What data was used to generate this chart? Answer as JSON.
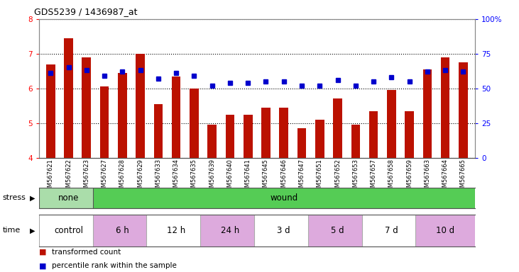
{
  "title": "GDS5239 / 1436987_at",
  "samples": [
    "GSM567621",
    "GSM567622",
    "GSM567623",
    "GSM567627",
    "GSM567628",
    "GSM567629",
    "GSM567633",
    "GSM567634",
    "GSM567635",
    "GSM567639",
    "GSM567640",
    "GSM567641",
    "GSM567645",
    "GSM567646",
    "GSM567647",
    "GSM567651",
    "GSM567652",
    "GSM567653",
    "GSM567657",
    "GSM567658",
    "GSM567659",
    "GSM567663",
    "GSM567664",
    "GSM567665"
  ],
  "transformed_count": [
    6.7,
    7.45,
    6.9,
    6.05,
    6.45,
    7.0,
    5.55,
    6.35,
    6.0,
    4.95,
    5.25,
    5.25,
    5.45,
    5.45,
    4.85,
    5.1,
    5.7,
    4.95,
    5.35,
    5.95,
    5.35,
    6.55,
    6.9,
    6.75
  ],
  "percentile_rank": [
    61,
    65,
    63,
    59,
    62,
    63,
    57,
    61,
    59,
    52,
    54,
    54,
    55,
    55,
    52,
    52,
    56,
    52,
    55,
    58,
    55,
    62,
    63,
    62
  ],
  "ylim_left": [
    4,
    8
  ],
  "ylim_right": [
    0,
    100
  ],
  "yticks_left": [
    4,
    5,
    6,
    7,
    8
  ],
  "yticks_right": [
    0,
    25,
    50,
    75,
    100
  ],
  "bar_color": "#bb1100",
  "dot_color": "#0000cc",
  "bar_bottom": 4.0,
  "stress_segments": [
    {
      "label": "none",
      "start": 0,
      "end": 3,
      "color": "#aaddaa"
    },
    {
      "label": "wound",
      "start": 3,
      "end": 24,
      "color": "#55cc55"
    }
  ],
  "time_segments": [
    {
      "label": "control",
      "start": 0,
      "end": 3,
      "color": "#ffffff"
    },
    {
      "label": "6 h",
      "start": 3,
      "end": 6,
      "color": "#ddaadd"
    },
    {
      "label": "12 h",
      "start": 6,
      "end": 9,
      "color": "#ffffff"
    },
    {
      "label": "24 h",
      "start": 9,
      "end": 12,
      "color": "#ddaadd"
    },
    {
      "label": "3 d",
      "start": 12,
      "end": 15,
      "color": "#ffffff"
    },
    {
      "label": "5 d",
      "start": 15,
      "end": 18,
      "color": "#ddaadd"
    },
    {
      "label": "7 d",
      "start": 18,
      "end": 21,
      "color": "#ffffff"
    },
    {
      "label": "10 d",
      "start": 21,
      "end": 24,
      "color": "#ddaadd"
    }
  ],
  "legend_red": "transformed count",
  "legend_blue": "percentile rank within the sample",
  "chart_bg": "#ffffff",
  "xtick_bg": "#dddddd"
}
